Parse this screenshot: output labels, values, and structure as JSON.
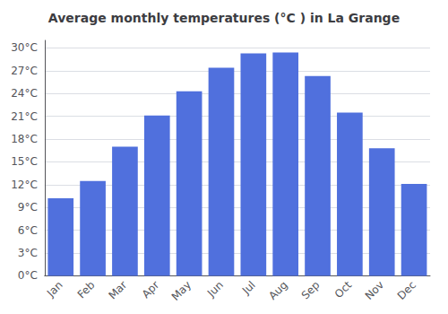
{
  "chart_data": {
    "type": "bar",
    "title": "Average monthly temperatures (°C ) in La Grange",
    "categories": [
      "Jan",
      "Feb",
      "Mar",
      "Apr",
      "May",
      "Jun",
      "Jul",
      "Aug",
      "Sep",
      "Oct",
      "Nov",
      "Dec"
    ],
    "values": [
      10.2,
      12.5,
      17.0,
      21.1,
      24.3,
      27.4,
      29.3,
      29.4,
      26.3,
      21.5,
      16.8,
      12.1
    ],
    "ylim": [
      0,
      31
    ],
    "yticks": [
      {
        "value": 0,
        "label": "0°C"
      },
      {
        "value": 3,
        "label": "3°C"
      },
      {
        "value": 6,
        "label": "6°C"
      },
      {
        "value": 9,
        "label": "9°C"
      },
      {
        "value": 12,
        "label": "12°C"
      },
      {
        "value": 15,
        "label": "15°C"
      },
      {
        "value": 18,
        "label": "18°C"
      },
      {
        "value": 21,
        "label": "21°C"
      },
      {
        "value": 24,
        "label": "24°C"
      },
      {
        "value": 27,
        "label": "27°C"
      },
      {
        "value": 30,
        "label": "30°C"
      }
    ],
    "grid": true
  }
}
